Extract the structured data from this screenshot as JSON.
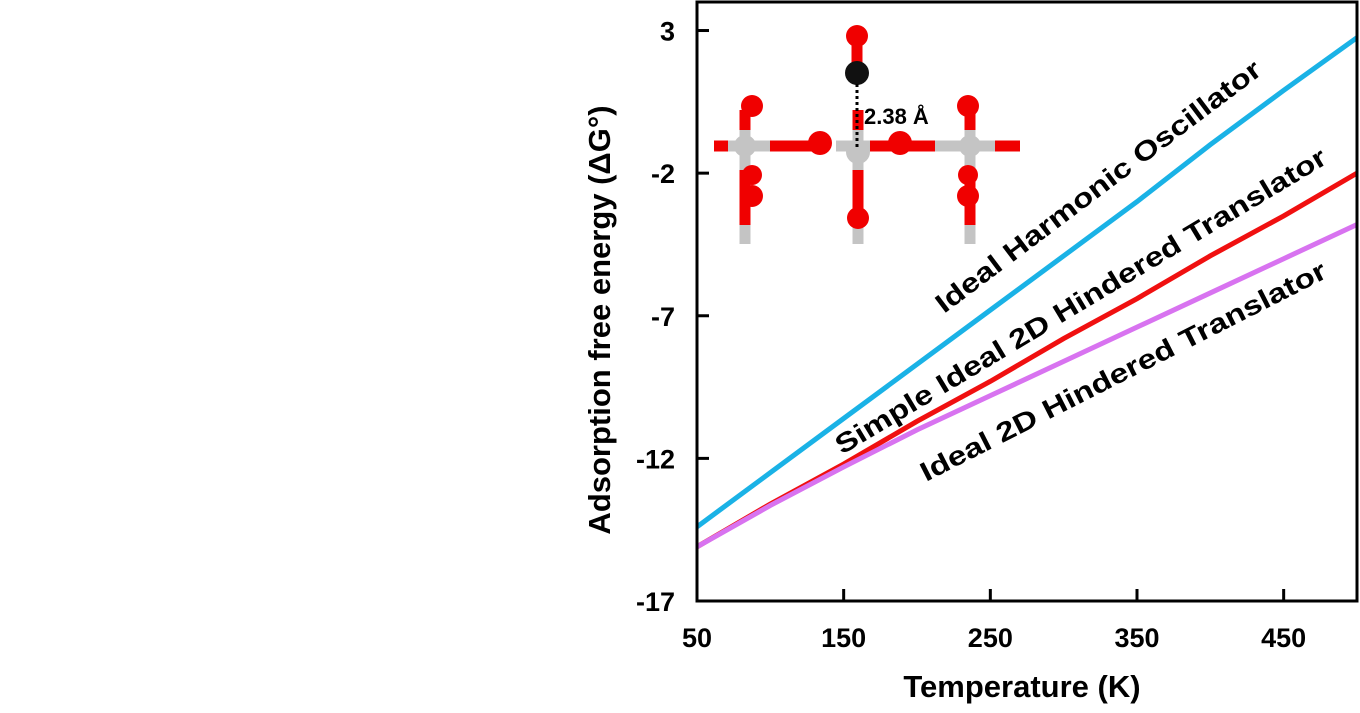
{
  "chart_data": {
    "type": "line",
    "title": "",
    "xlabel": "Temperature (K)",
    "ylabel": "Adsorption free energy (ΔG°)",
    "xlim": [
      50,
      500
    ],
    "ylim": [
      -17,
      4
    ],
    "xticks": [
      50,
      150,
      250,
      350,
      450
    ],
    "yticks": [
      3,
      -2,
      -7,
      -12,
      -17
    ],
    "grid": false,
    "legend": "inline labels along lines",
    "x": [
      50,
      100,
      150,
      200,
      250,
      300,
      350,
      400,
      450,
      500
    ],
    "series": [
      {
        "name": "Ideal Harmonic Oscillator",
        "color": "#1ab2e6",
        "values": [
          -14.4,
          -12.5,
          -10.6,
          -8.7,
          -6.8,
          -4.9,
          -3.0,
          -1.0,
          0.9,
          2.75
        ]
      },
      {
        "name": "Simple Ideal 2D Hindered Translator",
        "color": "#f01010",
        "values": [
          -15.1,
          -13.6,
          -12.2,
          -10.7,
          -9.3,
          -7.8,
          -6.4,
          -4.9,
          -3.5,
          -2.0
        ]
      },
      {
        "name": "Ideal 2D Hindered Translator",
        "color": "#d873f0",
        "values": [
          -15.1,
          -13.65,
          -12.3,
          -11.0,
          -9.8,
          -8.6,
          -7.4,
          -6.2,
          -5.0,
          -3.8
        ]
      }
    ],
    "inset": {
      "annotation": "2.38 Å"
    }
  }
}
